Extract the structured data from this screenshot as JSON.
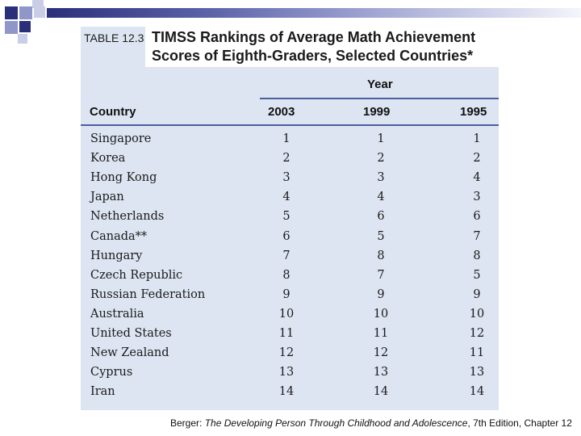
{
  "table": {
    "number": "TABLE 12.3",
    "title_line1": "TIMSS Rankings of Average Math Achievement",
    "title_line2": "Scores of Eighth-Graders, Selected Countries*",
    "year_header": "Year",
    "headers": {
      "country": "Country",
      "y2003": "2003",
      "y1999": "1999",
      "y1995": "1995"
    },
    "rows": [
      {
        "country": "Singapore",
        "y2003": "1",
        "y1999": "1",
        "y1995": "1"
      },
      {
        "country": "Korea",
        "y2003": "2",
        "y1999": "2",
        "y1995": "2"
      },
      {
        "country": "Hong Kong",
        "y2003": "3",
        "y1999": "3",
        "y1995": "4"
      },
      {
        "country": "Japan",
        "y2003": "4",
        "y1999": "4",
        "y1995": "3"
      },
      {
        "country": "Netherlands",
        "y2003": "5",
        "y1999": "6",
        "y1995": "6"
      },
      {
        "country": "Canada**",
        "y2003": "6",
        "y1999": "5",
        "y1995": "7"
      },
      {
        "country": "Hungary",
        "y2003": "7",
        "y1999": "8",
        "y1995": "8"
      },
      {
        "country": "Czech Republic",
        "y2003": "8",
        "y1999": "7",
        "y1995": "5"
      },
      {
        "country": "Russian Federation",
        "y2003": "9",
        "y1999": "9",
        "y1995": "9"
      },
      {
        "country": "Australia",
        "y2003": "10",
        "y1999": "10",
        "y1995": "10"
      },
      {
        "country": "United States",
        "y2003": "11",
        "y1999": "11",
        "y1995": "12"
      },
      {
        "country": "New Zealand",
        "y2003": "12",
        "y1999": "12",
        "y1995": "11"
      },
      {
        "country": "Cyprus",
        "y2003": "13",
        "y1999": "13",
        "y1995": "13"
      },
      {
        "country": "Iran",
        "y2003": "14",
        "y1999": "14",
        "y1995": "14"
      }
    ]
  },
  "footer": {
    "prefix": "Berger: ",
    "book_title": "The Developing Person Through Childhood and Adolescence",
    "suffix": ", 7th Edition, Chapter 12"
  },
  "colors": {
    "panel": "#dde5f2",
    "rule": "#4a5f9e",
    "accent": "#2a2f7a"
  }
}
